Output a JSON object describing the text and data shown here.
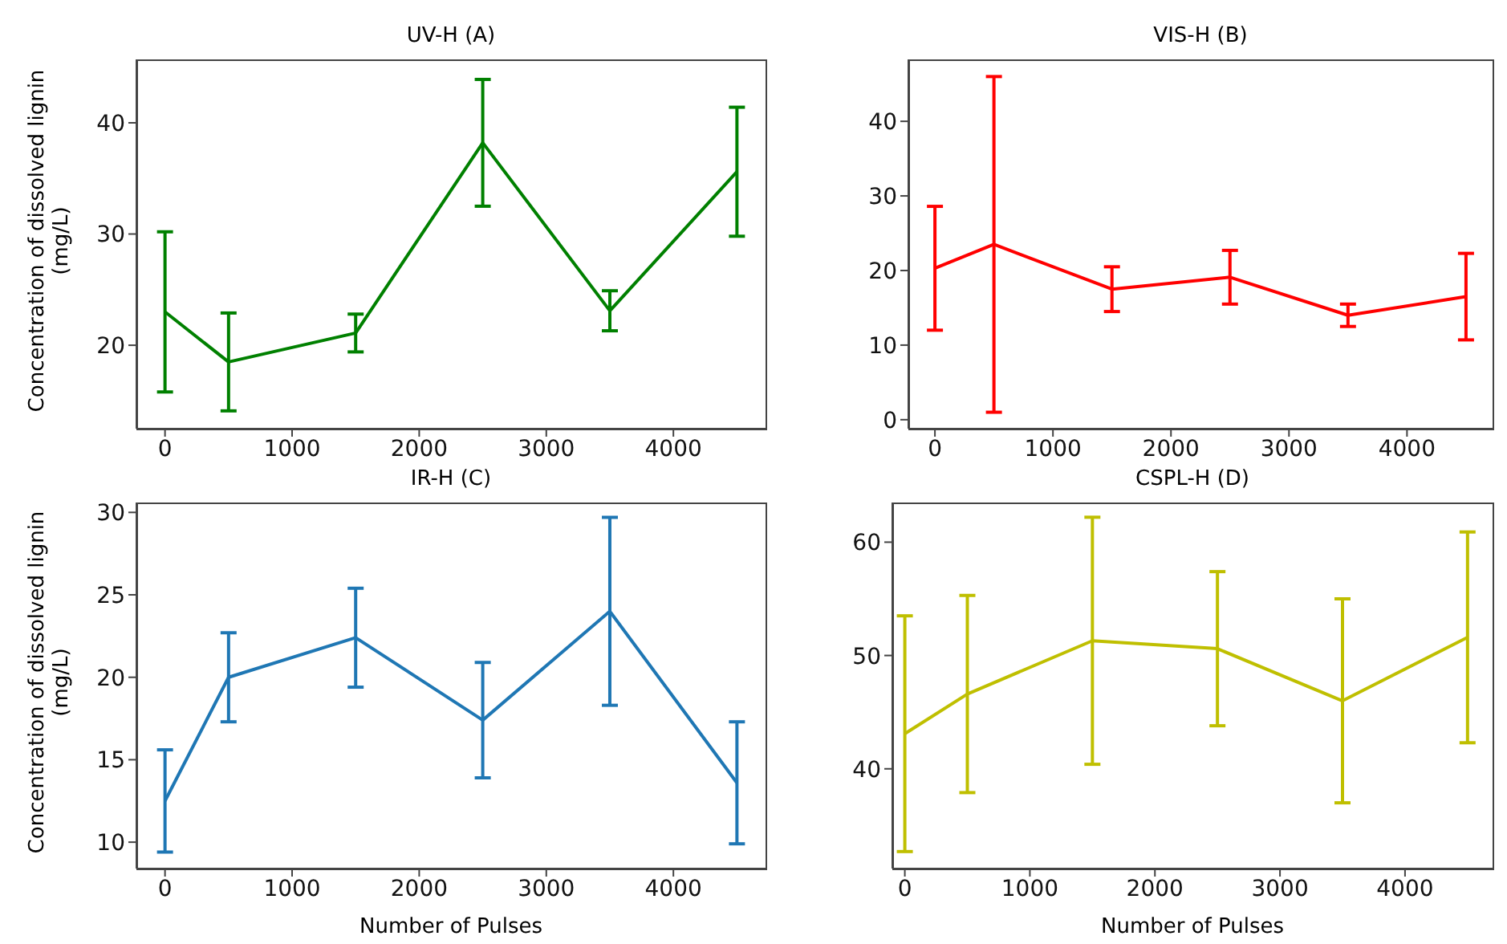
{
  "chart_data": [
    {
      "type": "line",
      "title": "UV-H (A)",
      "ylabel": "Concentration of dissolved lignin (mg/L)",
      "x": [
        0,
        500,
        1500,
        2500,
        3500,
        4500
      ],
      "series": [
        {
          "color": "#008000",
          "values": [
            23.0,
            18.5,
            21.1,
            38.2,
            23.1,
            35.6
          ],
          "errors": [
            7.2,
            4.4,
            1.7,
            5.7,
            1.8,
            5.8
          ]
        }
      ],
      "xlim": [
        -225,
        4725
      ],
      "xticks": [
        0,
        1000,
        2000,
        3000,
        4000
      ],
      "ylim": [
        12.5,
        45.7
      ],
      "yticks": [
        20,
        30,
        40
      ]
    },
    {
      "type": "line",
      "title": "VIS-H (B)",
      "x": [
        0,
        500,
        1500,
        2500,
        3500,
        4500
      ],
      "series": [
        {
          "color": "#ff0000",
          "values": [
            20.3,
            23.5,
            17.5,
            19.1,
            14.0,
            16.5
          ],
          "errors": [
            8.3,
            22.5,
            3.0,
            3.6,
            1.5,
            5.8
          ]
        }
      ],
      "xlim": [
        -225,
        4725
      ],
      "xticks": [
        0,
        1000,
        2000,
        3000,
        4000
      ],
      "ylim": [
        -1.2,
        48.3
      ],
      "yticks": [
        0,
        10,
        20,
        30,
        40
      ]
    },
    {
      "type": "line",
      "title": "IR-H (C)",
      "xlabel": "Number of Pulses",
      "ylabel": "Concentration of dissolved lignin (mg/L)",
      "x": [
        0,
        500,
        1500,
        2500,
        3500,
        4500
      ],
      "series": [
        {
          "color": "#1f77b4",
          "values": [
            12.5,
            20.0,
            22.4,
            17.4,
            24.0,
            13.6
          ],
          "errors": [
            3.1,
            2.7,
            3.0,
            3.5,
            5.7,
            3.7
          ]
        }
      ],
      "xlim": [
        -225,
        4725
      ],
      "xticks": [
        0,
        1000,
        2000,
        3000,
        4000
      ],
      "ylim": [
        8.4,
        30.6
      ],
      "yticks": [
        10,
        15,
        20,
        25,
        30
      ]
    },
    {
      "type": "line",
      "title": "CSPL-H (D)",
      "xlabel": "Number of Pulses",
      "x": [
        0,
        500,
        1500,
        2500,
        3500,
        4500
      ],
      "series": [
        {
          "color": "#bfbf00",
          "values": [
            43.1,
            46.6,
            51.3,
            50.6,
            46.0,
            51.6
          ],
          "errors": [
            10.4,
            8.7,
            10.9,
            6.8,
            9.0,
            9.3
          ]
        }
      ],
      "xlim": [
        -100,
        4700
      ],
      "xticks": [
        0,
        1000,
        2000,
        3000,
        4000
      ],
      "ylim": [
        31.2,
        63.5
      ],
      "yticks": [
        40,
        50,
        60
      ]
    }
  ]
}
